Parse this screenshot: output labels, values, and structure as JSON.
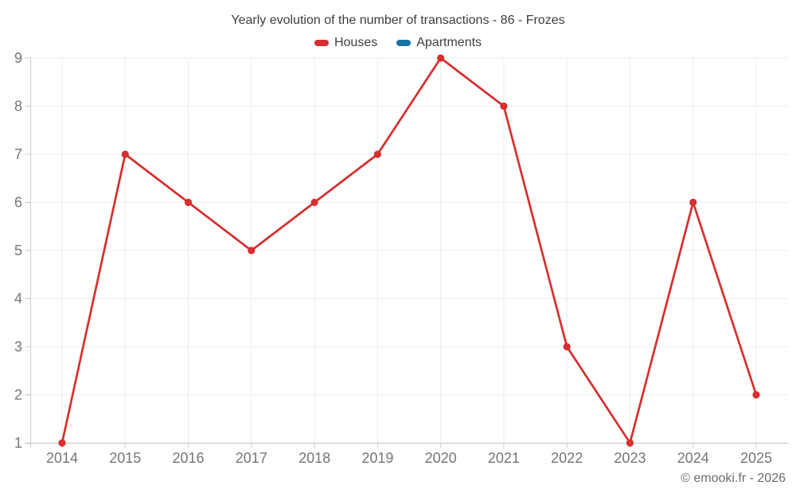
{
  "title": "Yearly evolution of the number of transactions - 86 - Frozes",
  "legend": [
    {
      "label": "Houses",
      "color": "#d62f2e"
    },
    {
      "label": "Apartments",
      "color": "#1572a2"
    }
  ],
  "watermark": "© emooki.fr - 2026",
  "colors": {
    "background": "#ffffff",
    "grid": "#ececec",
    "axis": "#cccccc",
    "tick_label": "#757575",
    "title_text": "#3d3d3d",
    "houses_red": "#d62f2e",
    "apartments_blue": "#1572a2",
    "watermark_text": "#6b6b6b"
  },
  "chart_data": {
    "type": "line",
    "title": "Yearly evolution of the number of transactions - 86 - Frozes",
    "categories": [
      "2014",
      "2015",
      "2016",
      "2017",
      "2018",
      "2019",
      "2020",
      "2021",
      "2022",
      "2023",
      "2024",
      "2025"
    ],
    "series": [
      {
        "name": "Houses",
        "color": "#d62f2e",
        "values": [
          1,
          7,
          6,
          5,
          6,
          7,
          9,
          8,
          3,
          1,
          6,
          2
        ]
      },
      {
        "name": "Apartments",
        "color": "#1572a2",
        "values": []
      }
    ],
    "xlabel": "",
    "ylabel": "",
    "ylim": [
      1,
      9
    ],
    "y_ticks": [
      1,
      2,
      3,
      4,
      5,
      6,
      7,
      8,
      9
    ],
    "grid": true,
    "legend_position": "top",
    "marker": "circle"
  }
}
